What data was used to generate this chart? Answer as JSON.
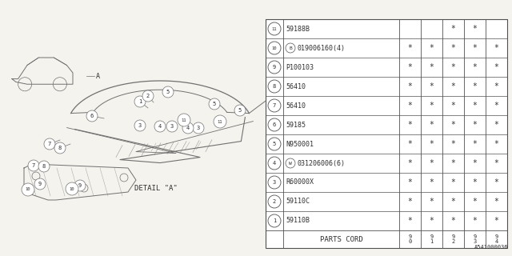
{
  "bg_color": "#f5f3ee",
  "line_color": "#707070",
  "text_color": "#303030",
  "border_color": "#505050",
  "watermark": "A541000036",
  "detail_label": "DETAIL \"A\"",
  "table": {
    "header_col": "PARTS CORD",
    "year_cols": [
      "9\n0",
      "9\n1",
      "9\n2",
      "9\n3",
      "9\n4"
    ],
    "rows": [
      {
        "num": "1",
        "prefix": "",
        "part": "59110B",
        "stars": [
          1,
          1,
          1,
          1,
          1
        ]
      },
      {
        "num": "2",
        "prefix": "",
        "part": "59110C",
        "stars": [
          1,
          1,
          1,
          1,
          1
        ]
      },
      {
        "num": "3",
        "prefix": "",
        "part": "R60000X",
        "stars": [
          1,
          1,
          1,
          1,
          1
        ]
      },
      {
        "num": "4",
        "prefix": "W",
        "part": "031206006(6)",
        "stars": [
          1,
          1,
          1,
          1,
          1
        ]
      },
      {
        "num": "5",
        "prefix": "",
        "part": "N950001",
        "stars": [
          1,
          1,
          1,
          1,
          1
        ]
      },
      {
        "num": "6",
        "prefix": "",
        "part": "59185",
        "stars": [
          1,
          1,
          1,
          1,
          1
        ]
      },
      {
        "num": "7",
        "prefix": "",
        "part": "56410",
        "stars": [
          1,
          1,
          1,
          1,
          1
        ]
      },
      {
        "num": "8",
        "prefix": "",
        "part": "56410",
        "stars": [
          1,
          1,
          1,
          1,
          1
        ]
      },
      {
        "num": "9",
        "prefix": "",
        "part": "P100103",
        "stars": [
          1,
          1,
          1,
          1,
          1
        ]
      },
      {
        "num": "10",
        "prefix": "B",
        "part": "019006160(4)",
        "stars": [
          1,
          1,
          1,
          1,
          1
        ]
      },
      {
        "num": "11",
        "prefix": "",
        "part": "59188B",
        "stars": [
          0,
          0,
          1,
          1,
          0
        ]
      }
    ]
  }
}
